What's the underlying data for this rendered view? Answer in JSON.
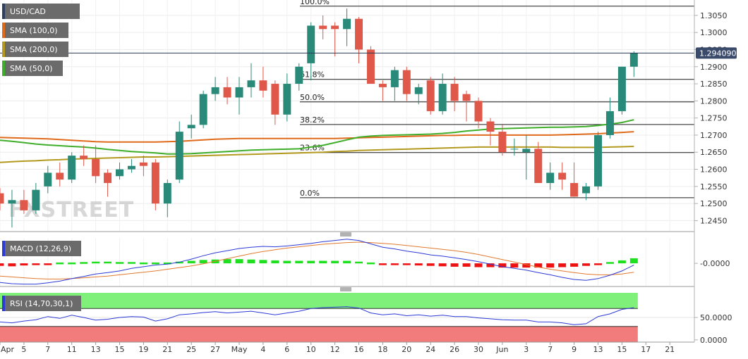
{
  "watermark": "FXSTREET",
  "chart_data": {
    "type": "candlestick",
    "symbol": "USD/CAD",
    "last_price_label": "1.294090",
    "price_axis": {
      "min": 1.242,
      "max": 1.3095,
      "ticks": [
        "1.3050",
        "1.3000",
        "1.2950",
        "1.2900",
        "1.2850",
        "1.2800",
        "1.2750",
        "1.2700",
        "1.2650",
        "1.2600",
        "1.2550",
        "1.2500",
        "1.2450"
      ]
    },
    "x_axis": {
      "labels": [
        {
          "i": 0,
          "text": "Apr"
        },
        {
          "i": 2,
          "text": "5"
        },
        {
          "i": 4,
          "text": "7"
        },
        {
          "i": 6,
          "text": "11"
        },
        {
          "i": 8,
          "text": "13"
        },
        {
          "i": 10,
          "text": "15"
        },
        {
          "i": 12,
          "text": "19"
        },
        {
          "i": 14,
          "text": "21"
        },
        {
          "i": 16,
          "text": "25"
        },
        {
          "i": 18,
          "text": "27"
        },
        {
          "i": 20,
          "text": "May"
        },
        {
          "i": 22,
          "text": "4"
        },
        {
          "i": 24,
          "text": "6"
        },
        {
          "i": 26,
          "text": "10"
        },
        {
          "i": 28,
          "text": "12"
        },
        {
          "i": 30,
          "text": "16"
        },
        {
          "i": 32,
          "text": "18"
        },
        {
          "i": 34,
          "text": "20"
        },
        {
          "i": 36,
          "text": "24"
        },
        {
          "i": 38,
          "text": "26"
        },
        {
          "i": 40,
          "text": "30"
        },
        {
          "i": 42,
          "text": "Jun"
        },
        {
          "i": 44,
          "text": "3"
        },
        {
          "i": 46,
          "text": "7"
        },
        {
          "i": 48,
          "text": "9"
        },
        {
          "i": 50,
          "text": "13"
        },
        {
          "i": 52,
          "text": "15"
        },
        {
          "i": 54,
          "text": "17"
        },
        {
          "i": 56,
          "text": "21"
        }
      ]
    },
    "candles": [
      [
        1.253,
        1.2545,
        1.248,
        1.25
      ],
      [
        1.25,
        1.254,
        1.243,
        1.251
      ],
      [
        1.251,
        1.254,
        1.247,
        1.248
      ],
      [
        1.248,
        1.256,
        1.247,
        1.254
      ],
      [
        1.255,
        1.261,
        1.253,
        1.259
      ],
      [
        1.259,
        1.262,
        1.255,
        1.257
      ],
      [
        1.257,
        1.265,
        1.256,
        1.264
      ],
      [
        1.264,
        1.267,
        1.261,
        1.263
      ],
      [
        1.263,
        1.267,
        1.256,
        1.258
      ],
      [
        1.259,
        1.26,
        1.252,
        1.256
      ],
      [
        1.258,
        1.262,
        1.257,
        1.26
      ],
      [
        1.26,
        1.263,
        1.259,
        1.261
      ],
      [
        1.262,
        1.264,
        1.258,
        1.261
      ],
      [
        1.262,
        1.263,
        1.248,
        1.25
      ],
      [
        1.25,
        1.257,
        1.246,
        1.256
      ],
      [
        1.257,
        1.274,
        1.256,
        1.271
      ],
      [
        1.272,
        1.276,
        1.269,
        1.273
      ],
      [
        1.273,
        1.283,
        1.272,
        1.282
      ],
      [
        1.282,
        1.287,
        1.28,
        1.284
      ],
      [
        1.284,
        1.287,
        1.279,
        1.281
      ],
      [
        1.281,
        1.287,
        1.276,
        1.284
      ],
      [
        1.284,
        1.291,
        1.281,
        1.286
      ],
      [
        1.286,
        1.29,
        1.281,
        1.283
      ],
      [
        1.285,
        1.286,
        1.273,
        1.276
      ],
      [
        1.276,
        1.288,
        1.274,
        1.285
      ],
      [
        1.285,
        1.291,
        1.283,
        1.29
      ],
      [
        1.291,
        1.303,
        1.286,
        1.302
      ],
      [
        1.302,
        1.305,
        1.298,
        1.301
      ],
      [
        1.302,
        1.303,
        1.293,
        1.301
      ],
      [
        1.301,
        1.307,
        1.296,
        1.304
      ],
      [
        1.304,
        1.3045,
        1.291,
        1.295
      ],
      [
        1.295,
        1.296,
        1.285,
        1.285
      ],
      [
        1.285,
        1.286,
        1.28,
        1.284
      ],
      [
        1.284,
        1.29,
        1.28,
        1.289
      ],
      [
        1.289,
        1.29,
        1.28,
        1.282
      ],
      [
        1.282,
        1.285,
        1.279,
        1.284
      ],
      [
        1.286,
        1.287,
        1.276,
        1.277
      ],
      [
        1.277,
        1.288,
        1.276,
        1.285
      ],
      [
        1.285,
        1.287,
        1.277,
        1.28
      ],
      [
        1.282,
        1.283,
        1.274,
        1.28
      ],
      [
        1.28,
        1.281,
        1.272,
        1.274
      ],
      [
        1.274,
        1.275,
        1.267,
        1.271
      ],
      [
        1.271,
        1.273,
        1.264,
        1.265
      ],
      [
        1.266,
        1.269,
        1.264,
        1.266
      ],
      [
        1.265,
        1.27,
        1.257,
        1.266
      ],
      [
        1.266,
        1.268,
        1.256,
        1.256
      ],
      [
        1.256,
        1.262,
        1.254,
        1.259
      ],
      [
        1.259,
        1.262,
        1.254,
        1.257
      ],
      [
        1.256,
        1.262,
        1.252,
        1.252
      ],
      [
        1.253,
        1.256,
        1.251,
        1.255
      ],
      [
        1.255,
        1.271,
        1.254,
        1.27
      ],
      [
        1.27,
        1.281,
        1.269,
        1.277
      ],
      [
        1.277,
        1.29,
        1.276,
        1.29
      ],
      [
        1.29,
        1.2945,
        1.287,
        1.294
      ]
    ],
    "moving_averages": [
      {
        "name": "SMA (100,0)",
        "color": "#e06a1b",
        "values": [
          1.2693,
          1.2692,
          1.2691,
          1.269,
          1.2689,
          1.2687,
          1.2685,
          1.2683,
          1.2681,
          1.268,
          1.268,
          1.268,
          1.268,
          1.268,
          1.2681,
          1.2682,
          1.2684,
          1.2686,
          1.2688,
          1.2689,
          1.269,
          1.269,
          1.269,
          1.269,
          1.269,
          1.269,
          1.269,
          1.269,
          1.269,
          1.2691,
          1.2692,
          1.2693,
          1.2694,
          1.2695,
          1.2696,
          1.2697,
          1.2698,
          1.2699,
          1.2699,
          1.27,
          1.27,
          1.27,
          1.27,
          1.27,
          1.27,
          1.27,
          1.27,
          1.2701,
          1.2702,
          1.2703,
          1.2704,
          1.2706,
          1.2708,
          1.271
        ]
      },
      {
        "name": "SMA (200,0)",
        "color": "#b39a1f",
        "values": [
          1.262,
          1.2622,
          1.2624,
          1.2625,
          1.2627,
          1.2628,
          1.263,
          1.2631,
          1.2632,
          1.2633,
          1.2634,
          1.2635,
          1.2636,
          1.2636,
          1.2637,
          1.2638,
          1.2639,
          1.264,
          1.2641,
          1.2642,
          1.2643,
          1.2644,
          1.2645,
          1.2646,
          1.2647,
          1.2648,
          1.2649,
          1.265,
          1.2652,
          1.2653,
          1.2655,
          1.2656,
          1.2657,
          1.2658,
          1.2659,
          1.266,
          1.2661,
          1.2662,
          1.2663,
          1.2664,
          1.2665,
          1.2665,
          1.2665,
          1.2665,
          1.2665,
          1.2665,
          1.2665,
          1.2664,
          1.2664,
          1.2664,
          1.2664,
          1.2665,
          1.2666,
          1.2667
        ]
      },
      {
        "name": "SMA (50,0)",
        "color": "#3fae2a",
        "values": [
          1.2685,
          1.2682,
          1.2678,
          1.2674,
          1.2671,
          1.2669,
          1.2667,
          1.2665,
          1.2662,
          1.2658,
          1.2655,
          1.2652,
          1.265,
          1.2648,
          1.2645,
          1.2645,
          1.2646,
          1.2648,
          1.265,
          1.2652,
          1.2654,
          1.2656,
          1.2657,
          1.2658,
          1.2659,
          1.266,
          1.2665,
          1.267,
          1.2678,
          1.2686,
          1.2694,
          1.2697,
          1.2699,
          1.27,
          1.2701,
          1.2702,
          1.2703,
          1.2705,
          1.2708,
          1.2712,
          1.2715,
          1.2718,
          1.2719,
          1.272,
          1.2721,
          1.2722,
          1.2723,
          1.2723,
          1.2724,
          1.2725,
          1.2728,
          1.2732,
          1.2737,
          1.2745
        ]
      }
    ],
    "fibonacci": [
      {
        "label": "100.0%",
        "price": 1.3077
      },
      {
        "label": "61.8%",
        "price": 1.2863
      },
      {
        "label": "50.0%",
        "price": 1.2797
      },
      {
        "label": "38.2%",
        "price": 1.2731
      },
      {
        "label": "23.6%",
        "price": 1.2649
      },
      {
        "label": "0.0%",
        "price": 1.2517
      }
    ],
    "macd": {
      "name": "MACD (12,26,9)",
      "axis": {
        "min": -0.0053,
        "max": 0.006,
        "ticks": [
          {
            "v": 0.0,
            "text": "-0.0000"
          }
        ]
      },
      "macd_line": [
        -0.0045,
        -0.0048,
        -0.0049,
        -0.0049,
        -0.0046,
        -0.0042,
        -0.0036,
        -0.0031,
        -0.0025,
        -0.0022,
        -0.0018,
        -0.0012,
        -0.0008,
        -0.0004,
        -0.0002,
        0.0003,
        0.001,
        0.0018,
        0.0025,
        0.003,
        0.0035,
        0.0038,
        0.004,
        0.0039,
        0.0041,
        0.0044,
        0.0047,
        0.0051,
        0.0054,
        0.0057,
        0.0054,
        0.0046,
        0.0038,
        0.0034,
        0.0029,
        0.0025,
        0.002,
        0.0017,
        0.0013,
        0.0009,
        0.0004,
        -0.0002,
        -0.0008,
        -0.0012,
        -0.0016,
        -0.0022,
        -0.0027,
        -0.0033,
        -0.0038,
        -0.004,
        -0.0036,
        -0.0028,
        -0.0018,
        -0.0004
      ],
      "signal_line": [
        -0.003,
        -0.0032,
        -0.0034,
        -0.0036,
        -0.0037,
        -0.0037,
        -0.0036,
        -0.0034,
        -0.0032,
        -0.003,
        -0.0027,
        -0.0024,
        -0.0021,
        -0.0018,
        -0.0014,
        -0.001,
        -0.0006,
        -0.0001,
        0.0005,
        0.0011,
        0.0017,
        0.0023,
        0.0028,
        0.0032,
        0.0036,
        0.0039,
        0.0042,
        0.0045,
        0.0047,
        0.0049,
        0.005,
        0.0049,
        0.0047,
        0.0045,
        0.0042,
        0.0039,
        0.0036,
        0.0033,
        0.003,
        0.0026,
        0.0021,
        0.0015,
        0.0009,
        0.0003,
        -0.0003,
        -0.0009,
        -0.0014,
        -0.0018,
        -0.0022,
        -0.0025,
        -0.0027,
        -0.0027,
        -0.0025,
        -0.0021
      ],
      "histogram": [
        -0.0006,
        -0.0007,
        -0.0005,
        -0.0004,
        -0.0003,
        0.0002,
        0.0002,
        0.0003,
        0.0004,
        0.0004,
        0.0003,
        0.0003,
        0.0002,
        0.0002,
        0.0002,
        0.0004,
        0.0006,
        0.0008,
        0.0009,
        0.001,
        0.001,
        0.0009,
        0.0008,
        0.0007,
        0.0006,
        0.0006,
        0.0006,
        0.0006,
        0.0006,
        0.0006,
        0.0004,
        0.0002,
        -0.0002,
        -0.0003,
        -0.0004,
        -0.0005,
        -0.0006,
        -0.0007,
        -0.0008,
        -0.0008,
        -0.0009,
        -0.0009,
        -0.001,
        -0.001,
        -0.001,
        -0.001,
        -0.001,
        -0.0009,
        -0.0008,
        -0.0006,
        -0.0002,
        0.0003,
        0.0007,
        0.0012
      ]
    },
    "rsi": {
      "name": "RSI (14,70,30,1)",
      "axis": {
        "min": -5,
        "max": 105,
        "ticks": [
          {
            "v": 50,
            "text": "50.0000"
          },
          {
            "v": 0,
            "text": "0.0000"
          }
        ]
      },
      "overbought": 70,
      "oversold": 30,
      "values": [
        40,
        38,
        42,
        45,
        52,
        48,
        55,
        50,
        44,
        46,
        50,
        52,
        51,
        42,
        47,
        56,
        58,
        61,
        63,
        60,
        62,
        64,
        60,
        56,
        60,
        64,
        70,
        72,
        73,
        74,
        71,
        60,
        56,
        58,
        54,
        56,
        53,
        55,
        52,
        52,
        49,
        47,
        45,
        44,
        44,
        40,
        40,
        38,
        34,
        36,
        52,
        58,
        68,
        72
      ]
    }
  }
}
